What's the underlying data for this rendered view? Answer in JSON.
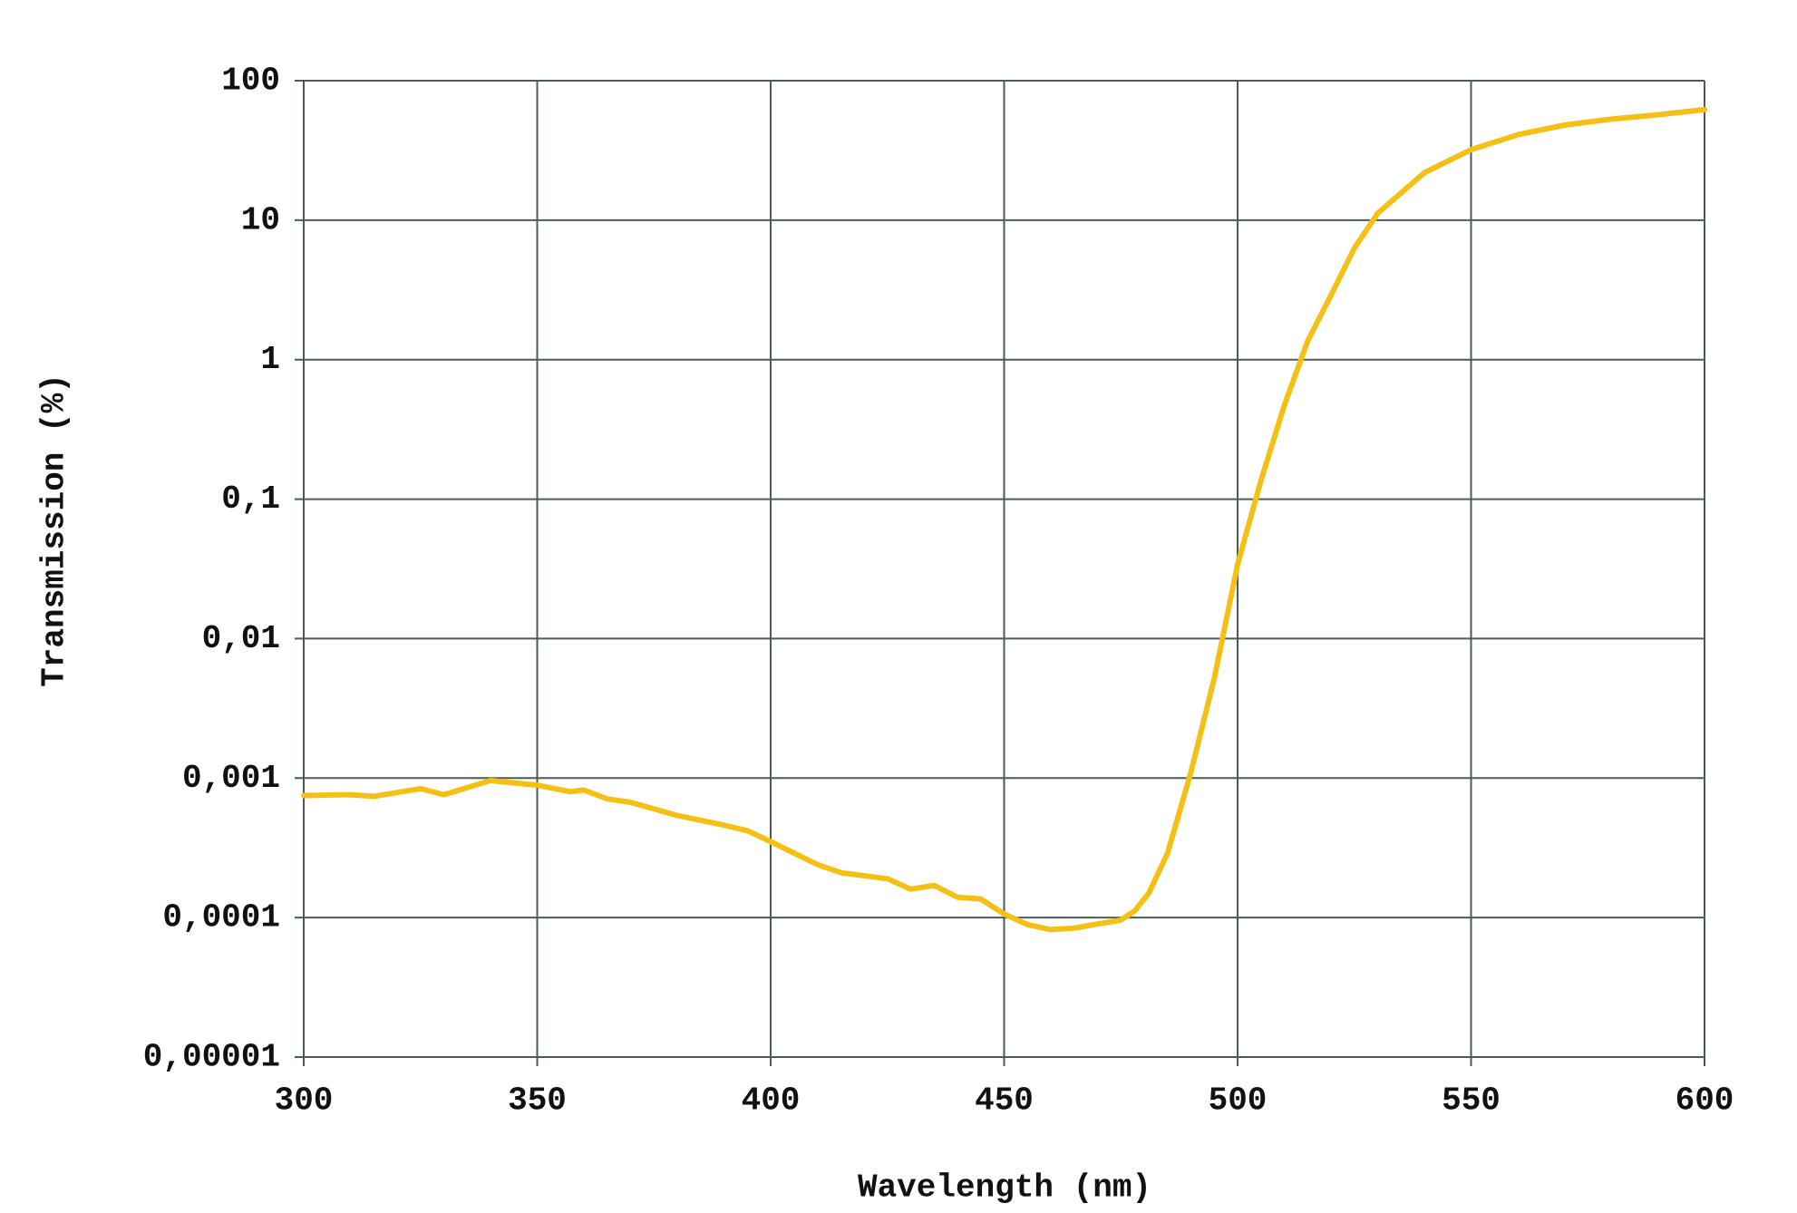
{
  "chart_data": {
    "type": "line",
    "x_label": "Wavelength (nm)",
    "y_label": "Transmission (%)",
    "y_log": true,
    "grid": true,
    "xlim": [
      300,
      600
    ],
    "xticks": [
      300,
      350,
      400,
      450,
      500,
      550,
      600
    ],
    "ylim": [
      1e-05,
      100
    ],
    "yticks": [
      {
        "value": 1e-05,
        "label": "0,00001"
      },
      {
        "value": 0.0001,
        "label": "0,0001"
      },
      {
        "value": 0.001,
        "label": "0,001"
      },
      {
        "value": 0.01,
        "label": "0,01"
      },
      {
        "value": 0.1,
        "label": "0,1"
      },
      1,
      10,
      100
    ],
    "x": [
      300,
      310,
      315,
      325,
      330,
      340,
      350,
      357,
      360,
      365,
      370,
      380,
      390,
      395,
      400,
      405,
      410,
      415,
      425,
      430,
      435,
      440,
      445,
      450,
      455,
      460,
      465,
      470,
      475,
      478,
      481,
      485,
      490,
      495,
      500,
      505,
      510,
      515,
      520,
      525,
      530,
      540,
      550,
      560,
      570,
      580,
      590,
      600
    ],
    "series": [
      {
        "name": "Transmission",
        "color": "#f5c015",
        "values": [
          0.00075,
          0.00076,
          0.00074,
          0.00084,
          0.00076,
          0.00096,
          0.00089,
          0.0008,
          0.00082,
          0.00071,
          0.00067,
          0.00054,
          0.00046,
          0.00042,
          0.00035,
          0.00029,
          0.00024,
          0.00021,
          0.00019,
          0.00016,
          0.00017,
          0.00014,
          0.000136,
          0.000106,
          8.9e-05,
          8.2e-05,
          8.4e-05,
          9e-05,
          9.6e-05,
          0.000112,
          0.00015,
          0.00029,
          0.0011,
          0.0052,
          0.034,
          0.136,
          0.47,
          1.36,
          2.9,
          6.3,
          11.2,
          21.9,
          32,
          41,
          48,
          53,
          57,
          62
        ]
      }
    ]
  }
}
